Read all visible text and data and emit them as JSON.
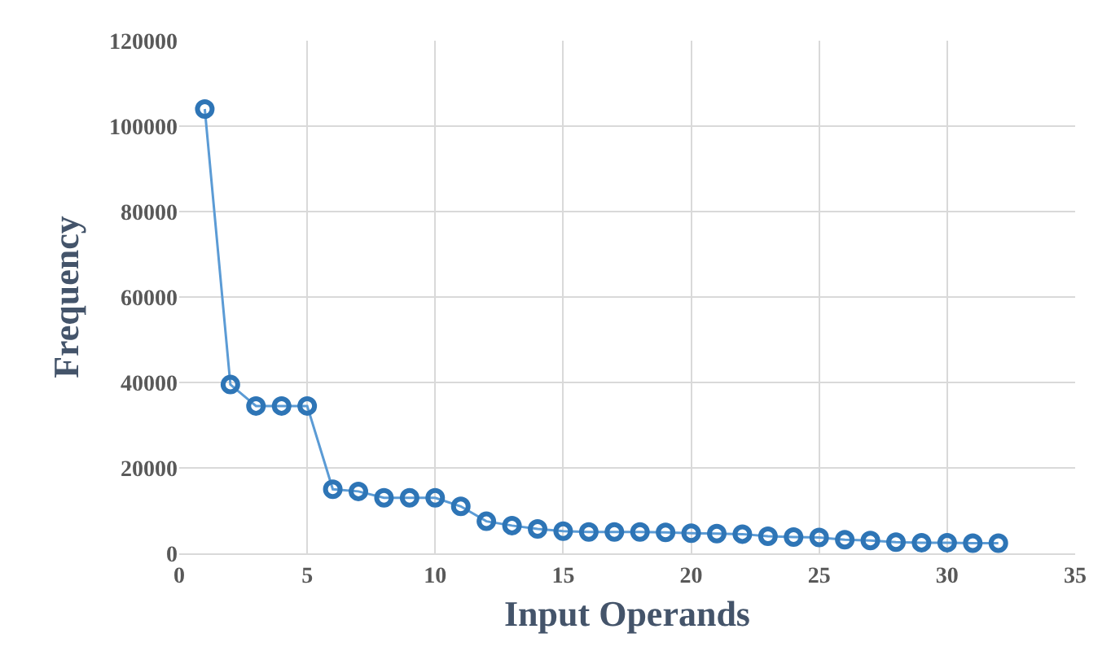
{
  "chart_data": {
    "type": "line",
    "xlabel": "Input Operands",
    "ylabel": "Frequency",
    "x": [
      1,
      2,
      3,
      4,
      5,
      6,
      7,
      8,
      9,
      10,
      11,
      12,
      13,
      14,
      15,
      16,
      17,
      18,
      19,
      20,
      21,
      22,
      23,
      24,
      25,
      26,
      27,
      28,
      29,
      30,
      31,
      32
    ],
    "series": [
      {
        "color": "#5b9bd5",
        "values": [
          104000,
          39500,
          34500,
          34500,
          34500,
          15000,
          14500,
          13000,
          13000,
          13000,
          11000,
          7500,
          6500,
          5700,
          5200,
          5000,
          5000,
          5000,
          4900,
          4700,
          4600,
          4500,
          4000,
          3800,
          3700,
          3200,
          3000,
          2600,
          2500,
          2500,
          2400,
          2400
        ]
      }
    ],
    "xlim": [
      0,
      35
    ],
    "xticks": [
      0,
      5,
      10,
      15,
      20,
      25,
      30,
      35
    ],
    "ylim": [
      0,
      120000
    ],
    "yticks": [
      0,
      20000,
      40000,
      60000,
      80000,
      100000,
      120000
    ],
    "grid": true,
    "marker": "circle",
    "line_style": "solid",
    "legend": false
  }
}
